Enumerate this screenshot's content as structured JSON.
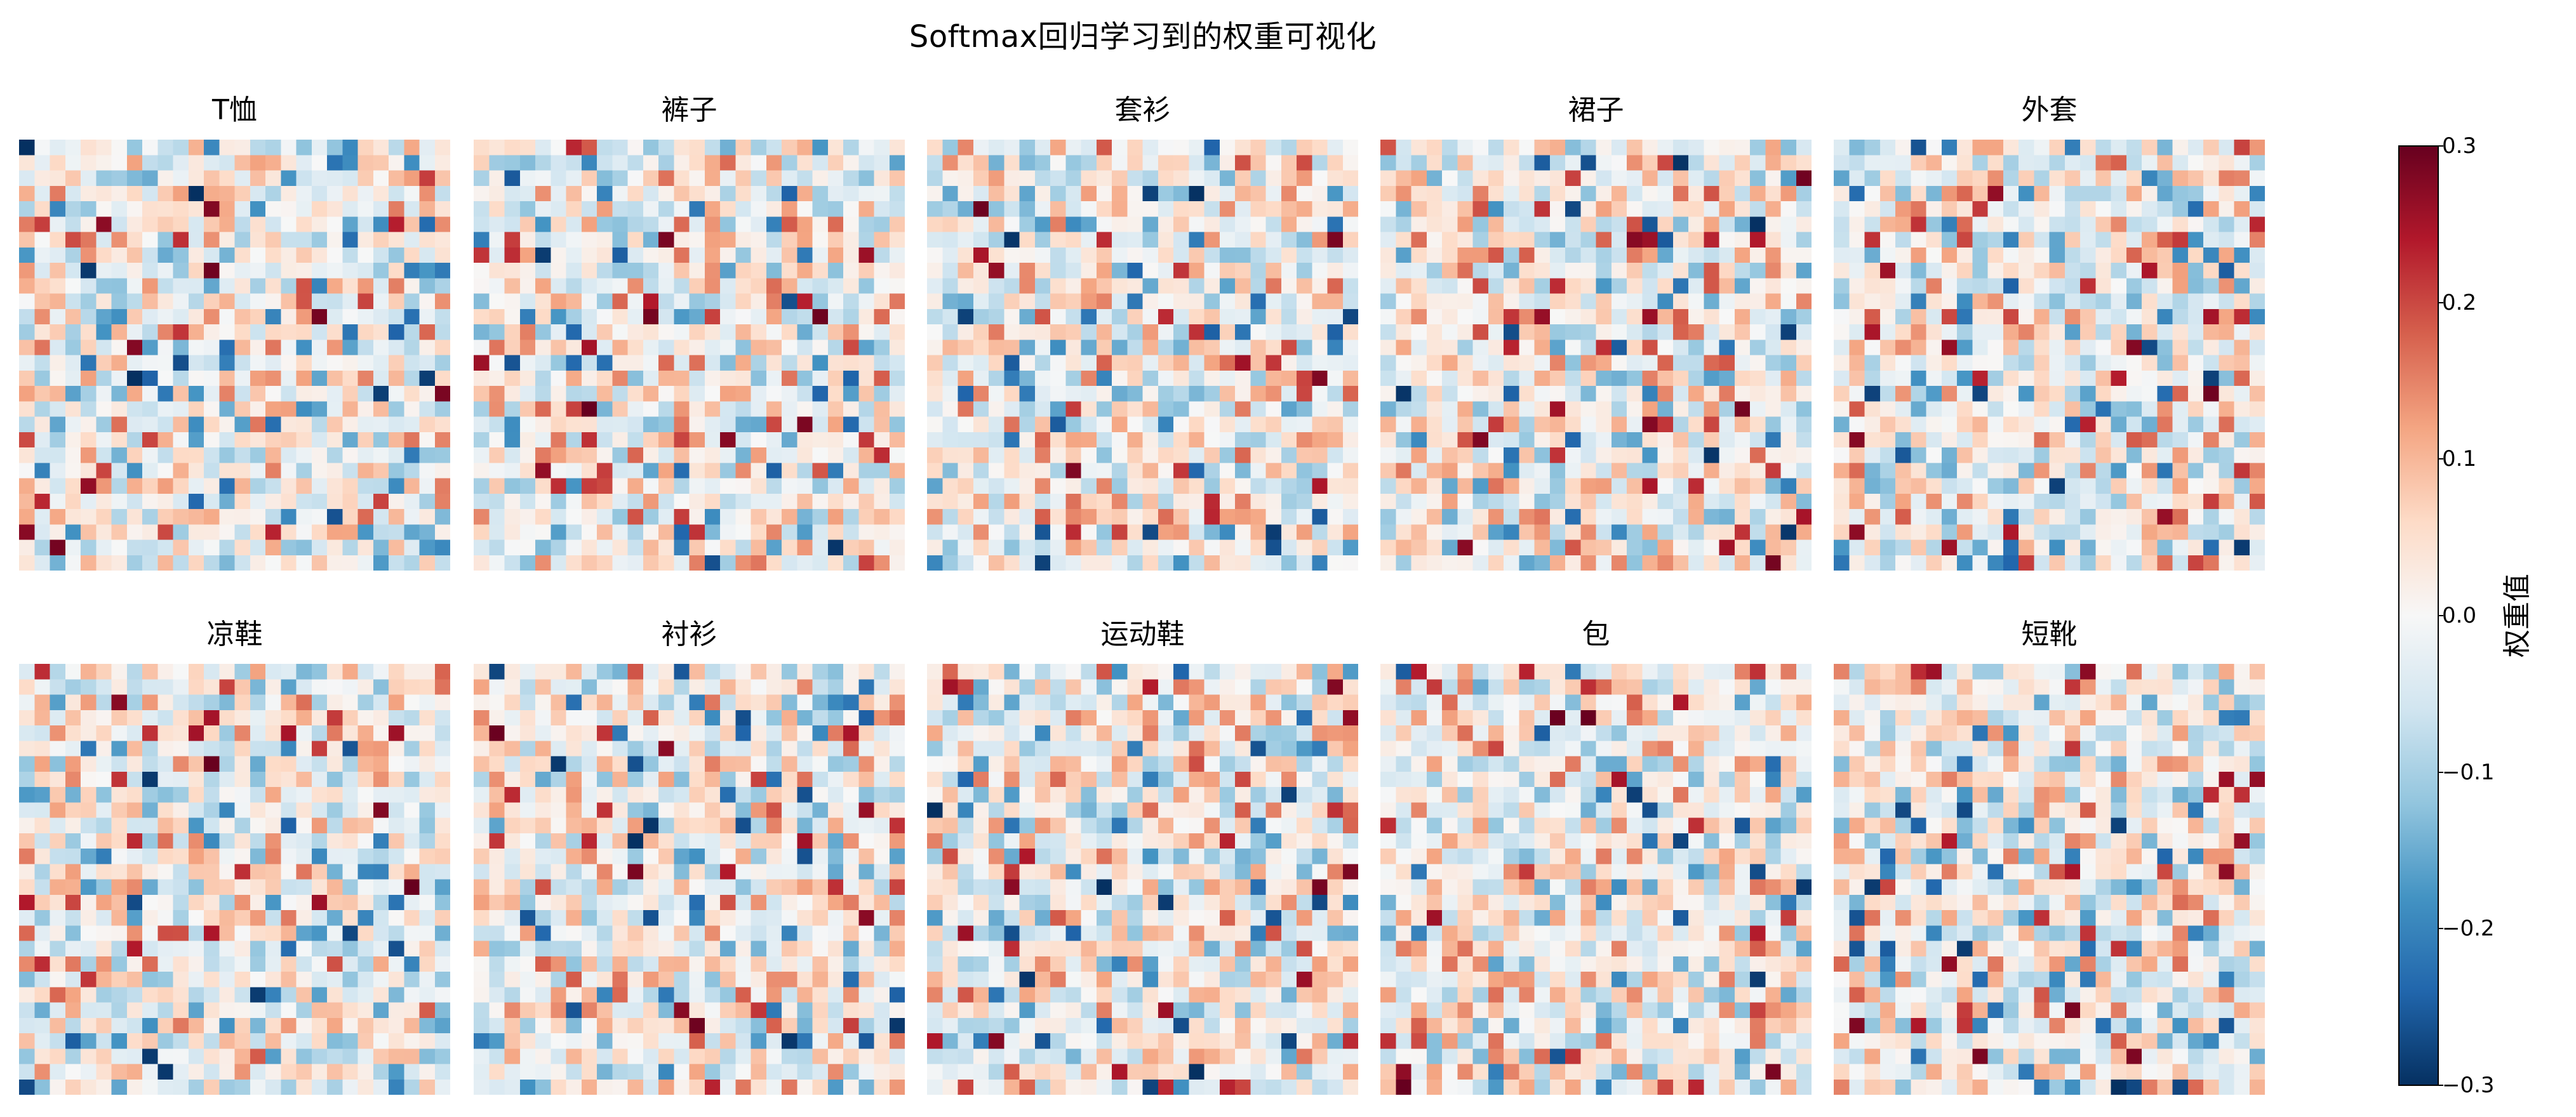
{
  "chart_data": {
    "type": "heatmap",
    "title": "Softmax回归学习到的权重可视化",
    "colormap": "RdBu_r",
    "grid": false,
    "grid_size": [
      28,
      28
    ],
    "panels": [
      {
        "title": "T恤",
        "seed": 11
      },
      {
        "title": "裤子",
        "seed": 23
      },
      {
        "title": "套衫",
        "seed": 37
      },
      {
        "title": "裙子",
        "seed": 41
      },
      {
        "title": "外套",
        "seed": 53
      },
      {
        "title": "凉鞋",
        "seed": 67
      },
      {
        "title": "衬衫",
        "seed": 79
      },
      {
        "title": "运动鞋",
        "seed": 83
      },
      {
        "title": "包",
        "seed": 97
      },
      {
        "title": "短靴",
        "seed": 101
      }
    ],
    "colorbar": {
      "label": "权重值",
      "vmin": -0.3,
      "vmax": 0.3,
      "ticks": [
        "0.3",
        "0.2",
        "0.1",
        "0.0",
        "−0.1",
        "−0.2",
        "−0.3"
      ],
      "tick_values": [
        0.3,
        0.2,
        0.1,
        0.0,
        -0.1,
        -0.2,
        -0.3
      ],
      "position": "right"
    },
    "colors": {
      "low": "#053061",
      "mid": "#f7f7f7",
      "high": "#67001f"
    }
  }
}
